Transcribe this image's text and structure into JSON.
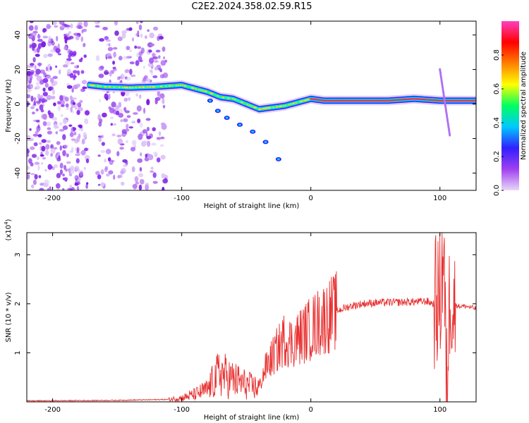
{
  "title": "C2E2.2024.358.02.59.R15",
  "chart_data": [
    {
      "type": "heatmap",
      "xlabel": "Height of straight line (km)",
      "ylabel": "Frequency (Hz)",
      "xlim": [
        -220,
        128
      ],
      "ylim": [
        -50,
        48
      ],
      "xticks": [
        -200,
        -100,
        0,
        100
      ],
      "yticks": [
        -40,
        -20,
        0,
        20,
        40
      ],
      "colorbar": {
        "label": "Normalized spectral amplitude",
        "range": [
          0,
          1
        ],
        "ticks": [
          "0.0",
          "0.2",
          "0.4",
          "0.6",
          "0.8"
        ],
        "colors": [
          "#e8d8f8",
          "#a040f0",
          "#3020ff",
          "#00c8ff",
          "#00ff60",
          "#ffff00",
          "#ff8000",
          "#ff0000",
          "#ff40c0"
        ]
      },
      "signal_track": [
        {
          "x": -172,
          "y": 11
        },
        {
          "x": -160,
          "y": 10
        },
        {
          "x": -140,
          "y": 9.5
        },
        {
          "x": -120,
          "y": 10
        },
        {
          "x": -100,
          "y": 11
        },
        {
          "x": -90,
          "y": 9
        },
        {
          "x": -80,
          "y": 7
        },
        {
          "x": -70,
          "y": 4
        },
        {
          "x": -60,
          "y": 3
        },
        {
          "x": -50,
          "y": 0
        },
        {
          "x": -40,
          "y": -3
        },
        {
          "x": -30,
          "y": -2
        },
        {
          "x": -20,
          "y": -1
        },
        {
          "x": -10,
          "y": 1
        },
        {
          "x": 0,
          "y": 3
        },
        {
          "x": 10,
          "y": 2
        },
        {
          "x": 30,
          "y": 2
        },
        {
          "x": 60,
          "y": 2
        },
        {
          "x": 80,
          "y": 3
        },
        {
          "x": 100,
          "y": 2
        },
        {
          "x": 128,
          "y": 2
        }
      ],
      "secondary_track": [
        {
          "x": -78,
          "y": 2
        },
        {
          "x": -72,
          "y": -4
        },
        {
          "x": -65,
          "y": -8
        },
        {
          "x": -55,
          "y": -12
        },
        {
          "x": -45,
          "y": -16
        },
        {
          "x": -35,
          "y": -22
        },
        {
          "x": -25,
          "y": -32
        }
      ]
    },
    {
      "type": "line",
      "xlabel": "Height of straight line (km)",
      "ylabel": "SNR (10 * v/v)",
      "yscale_label": "(x10",
      "yscale_exp": "4",
      "yscale_close": ")",
      "xlim": [
        -220,
        128
      ],
      "ylim": [
        0,
        3.45
      ],
      "xticks": [
        -200,
        -100,
        0,
        100
      ],
      "yticks": [
        1,
        2,
        3
      ],
      "line_color": "#e83030",
      "series": [
        {
          "x": [
            -220,
            -150,
            -110,
            -100,
            -90,
            -80,
            -75,
            -70,
            -65,
            -60,
            -55,
            -50,
            -45,
            -40,
            -35,
            -30,
            -25,
            -20,
            -15,
            -10,
            -5,
            0,
            10,
            20,
            30,
            40,
            50,
            60,
            70,
            80,
            90,
            95,
            100,
            103,
            105,
            108,
            110,
            115,
            120,
            128
          ],
          "values": [
            0.02,
            0.03,
            0.05,
            0.08,
            0.15,
            0.25,
            0.45,
            0.6,
            0.5,
            0.45,
            0.4,
            0.35,
            0.3,
            0.3,
            0.7,
            0.9,
            1.1,
            1.3,
            1.2,
            1.3,
            1.4,
            1.5,
            1.7,
            1.85,
            1.95,
            2.0,
            2.02,
            2.03,
            2.03,
            2.04,
            2.05,
            2.0,
            2.1,
            3.2,
            0.1,
            2.5,
            2.0,
            1.95,
            1.95,
            1.9
          ]
        }
      ]
    }
  ]
}
